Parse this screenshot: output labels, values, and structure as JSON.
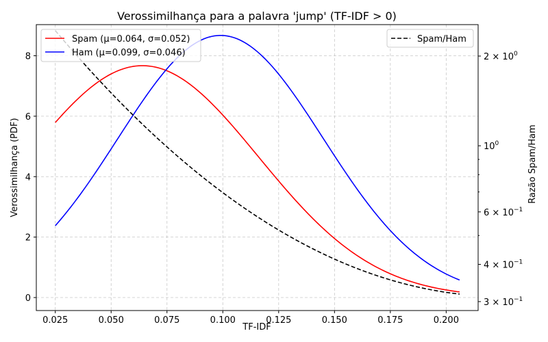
{
  "chart_data": {
    "type": "line",
    "title": "Verossimilhança para a palavra 'jump' (TF-IDF > 0)",
    "xlabel": "TF-IDF",
    "ylabel": "Verossimilhança (PDF)",
    "ylabel_right": "Razão Spam/Ham",
    "xlim": [
      0.0165,
      0.2143
    ],
    "ylim": [
      -0.43,
      9.03
    ],
    "y2lim": [
      0.28,
      2.55
    ],
    "y2_scale": "log",
    "grid": true,
    "x_ticks": [
      "0.025",
      "0.050",
      "0.075",
      "0.100",
      "0.125",
      "0.150",
      "0.175",
      "0.200"
    ],
    "x_tick_values": [
      0.025,
      0.05,
      0.075,
      0.1,
      0.125,
      0.15,
      0.175,
      0.2
    ],
    "y_ticks": [
      "0",
      "2",
      "4",
      "6",
      "8"
    ],
    "y_tick_values": [
      0,
      2,
      4,
      6,
      8
    ],
    "y2_ticks": [
      {
        "value": 2.0,
        "base": "2 × 10",
        "exp": "0"
      },
      {
        "value": 1.0,
        "base": "10",
        "exp": "0"
      },
      {
        "value": 0.6,
        "base": "6 × 10",
        "exp": "−1"
      },
      {
        "value": 0.4,
        "base": "4 × 10",
        "exp": "−1"
      },
      {
        "value": 0.3,
        "base": "3 × 10",
        "exp": "−1"
      }
    ],
    "y2_minor_ticks": [
      0.9,
      0.8,
      0.7,
      0.5
    ],
    "x_range": [
      0.025,
      0.206
    ],
    "series": [
      {
        "name": "Spam (μ=0.064, σ=0.052)",
        "color": "#ff0000",
        "mu": 0.064,
        "sigma": 0.052,
        "axis": "left",
        "dash": "solid"
      },
      {
        "name": "Ham (μ=0.099, σ=0.046)",
        "color": "#0000ff",
        "mu": 0.099,
        "sigma": 0.046,
        "axis": "left",
        "dash": "solid"
      },
      {
        "name": "Spam/Ham",
        "color": "#000000",
        "axis": "right",
        "dash": "dashed",
        "ratio_of": [
          "Spam (μ=0.064, σ=0.052)",
          "Ham (μ=0.099, σ=0.046)"
        ]
      }
    ],
    "legend_left": "upper-left",
    "legend_right": "upper-right"
  }
}
